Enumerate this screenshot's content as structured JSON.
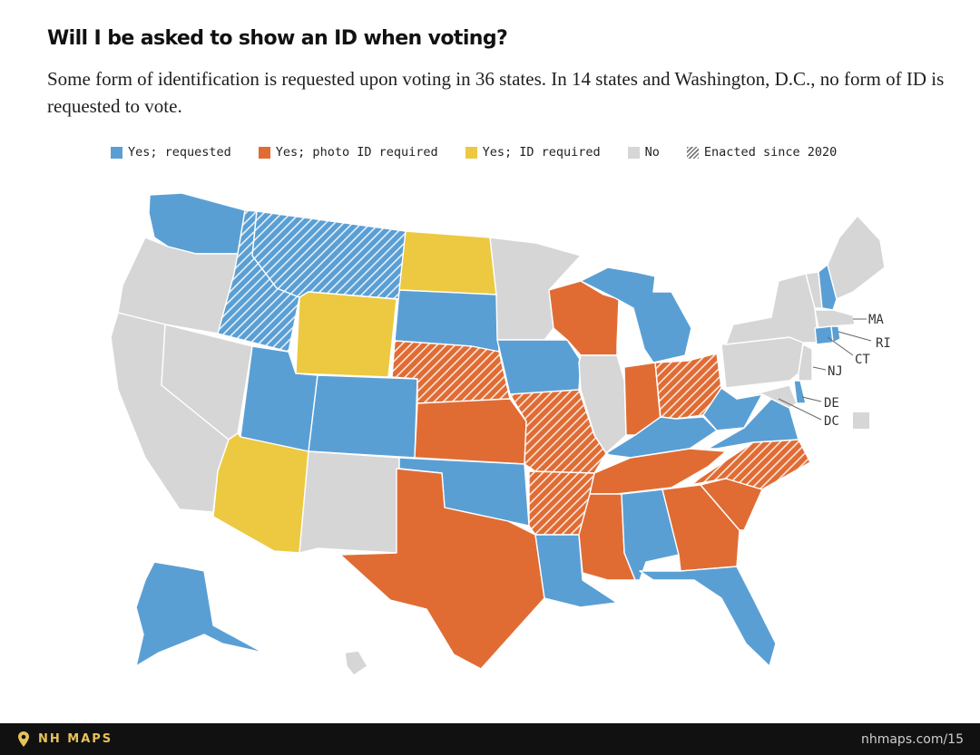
{
  "header": {
    "title": "Will I be asked to show an ID when voting?",
    "subtitle": "Some form of identification is requested upon voting in 36 states. In 14 states and Washington, D.C., no form of ID is requested to vote."
  },
  "legend": [
    {
      "label": "Yes; requested",
      "color": "#5a9fd4"
    },
    {
      "label": "Yes; photo ID required",
      "color": "#e06c34"
    },
    {
      "label": "Yes; ID required",
      "color": "#ecc940"
    },
    {
      "label": "No",
      "color": "#d6d6d6"
    },
    {
      "label": "Enacted since 2020",
      "pattern": "hatch"
    }
  ],
  "colors": {
    "requested": "#5a9fd4",
    "photo": "#e06c34",
    "id": "#ecc940",
    "no": "#d6d6d6"
  },
  "map": {
    "callouts": [
      "MA",
      "RI",
      "CT",
      "NJ",
      "DE",
      "DC"
    ],
    "states": {
      "WA": "requested",
      "OR": "no",
      "CA": "no",
      "NV": "no",
      "ID": "requested",
      "MT": "requested",
      "WY": "id",
      "UT": "requested",
      "AZ": "id",
      "CO": "requested",
      "NM": "no",
      "ND": "id",
      "SD": "requested",
      "NE": "photo",
      "KS": "photo",
      "OK": "requested",
      "TX": "photo",
      "MN": "no",
      "IA": "requested",
      "MO": "photo",
      "AR": "photo",
      "LA": "requested",
      "WI": "photo",
      "IL": "no",
      "MI": "requested",
      "IN": "photo",
      "OH": "photo",
      "KY": "requested",
      "TN": "photo",
      "MS": "photo",
      "AL": "requested",
      "GA": "photo",
      "FL": "requested",
      "SC": "photo",
      "NC": "photo",
      "VA": "requested",
      "WV": "requested",
      "PA": "no",
      "NY": "no",
      "VT": "no",
      "NH": "requested",
      "ME": "no",
      "MA": "no",
      "RI": "requested",
      "CT": "requested",
      "NJ": "no",
      "DE": "requested",
      "MD": "no",
      "DC": "no",
      "AK": "requested",
      "HI": "no"
    },
    "enacted_since_2020": [
      "ID",
      "MT",
      "NE",
      "MO",
      "AR",
      "OH",
      "NC"
    ]
  },
  "footer": {
    "brand": "NH MAPS",
    "url": "nhmaps.com/15"
  }
}
